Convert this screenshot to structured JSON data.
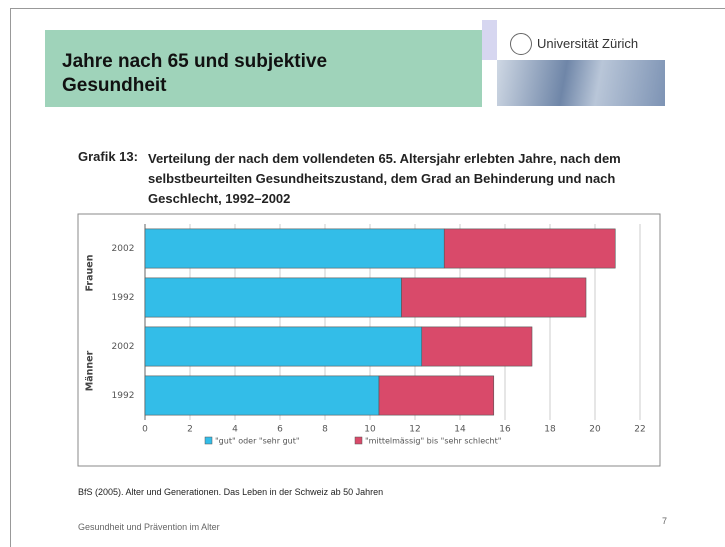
{
  "header": {
    "title": "Jahre nach 65 und subjektive Gesundheit",
    "logo_text": "Universität Zürich"
  },
  "chart_data": {
    "type": "bar",
    "orientation": "horizontal",
    "stacked": true,
    "title_label": "Grafik 13:",
    "title": "Verteilung der nach dem vollendeten 65. Altersjahr erlebten Jahre, nach dem selbstbeurteilten Gesundheitszustand, dem Grad an Behinderung und nach Geschlecht, 1992–2002",
    "groups": [
      "Frauen",
      "Männer"
    ],
    "categories": [
      "2002",
      "1992",
      "2002",
      "1992"
    ],
    "series": [
      {
        "name": "\"gut\" oder \"sehr gut\"",
        "color": "#33bde8",
        "values": [
          13.3,
          11.4,
          12.3,
          10.4
        ]
      },
      {
        "name": "\"mittelmässig\" bis \"sehr schlecht\"",
        "color": "#d94a6a",
        "values": [
          7.6,
          8.2,
          4.9,
          5.1
        ]
      }
    ],
    "xlim": [
      0,
      22
    ],
    "xticks": [
      0,
      2,
      4,
      6,
      8,
      10,
      12,
      14,
      16,
      18,
      20,
      22
    ],
    "grid": true
  },
  "footer": {
    "source": "BfS (2005). Alter und Generationen. Das Leben in der Schweiz ab 50 Jahren",
    "left": "Gesundheit und Prävention im Alter",
    "page": "7"
  }
}
